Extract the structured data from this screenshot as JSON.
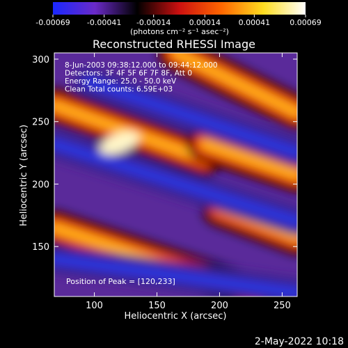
{
  "chart_data": {
    "type": "heatmap",
    "title": "Reconstructed RHESSI Image",
    "xlabel": "Heliocentric X (arcsec)",
    "ylabel": "Heliocentric Y (arcsec)",
    "xlim": [
      68,
      262
    ],
    "ylim": [
      110,
      305
    ],
    "x_ticks": [
      100,
      150,
      200,
      250
    ],
    "y_ticks": [
      150,
      200,
      250,
      300
    ],
    "colorbar": {
      "range": [
        -0.00069,
        0.00069
      ],
      "tick_values": [
        -0.00069,
        -0.00041,
        -0.00014,
        0.00014,
        0.00041,
        0.00069
      ],
      "tick_labels": [
        "-0.00069",
        "-0.00041",
        "-0.00014",
        "0.00014",
        "0.00041",
        "0.00069"
      ],
      "unit_label": "(photons cm⁻² s⁻¹ asec⁻²)",
      "colors": [
        "#1a28ff",
        "#6a2ac8",
        "#000000",
        "#cc1010",
        "#ff6600",
        "#ffdd20",
        "#ffffff"
      ]
    },
    "annotations": [
      " 8-Jun-2003 09:38:12.000 to 09:44:12.000",
      "Detectors: 3F 4F 5F 6F 7F 8F, Att 0",
      "Energy Range: 25.0 - 50.0 keV",
      "Clean    Total counts: 6.59E+03"
    ],
    "peak_label": "Position of Peak = [120,233]",
    "peak_position": [
      120,
      233
    ],
    "ridges": [
      {
        "kind": "bright",
        "from": [
          68,
          263
        ],
        "to": [
          188,
          220
        ]
      },
      {
        "kind": "bright",
        "from": [
          165,
          305
        ],
        "to": [
          262,
          257
        ]
      },
      {
        "kind": "bright",
        "from": [
          68,
          165
        ],
        "to": [
          230,
          112
        ]
      },
      {
        "kind": "bright",
        "from": [
          188,
          232
        ],
        "to": [
          262,
          207
        ]
      },
      {
        "kind": "bright",
        "from": [
          200,
          180
        ],
        "to": [
          262,
          157
        ]
      },
      {
        "kind": "dark",
        "from": [
          68,
          232
        ],
        "to": [
          262,
          170
        ]
      },
      {
        "kind": "dark",
        "from": [
          95,
          282
        ],
        "to": [
          262,
          225
        ]
      },
      {
        "kind": "dark",
        "from": [
          68,
          140
        ],
        "to": [
          262,
          113
        ]
      }
    ]
  },
  "footer": {
    "timestamp": "2-May-2022 10:18"
  }
}
